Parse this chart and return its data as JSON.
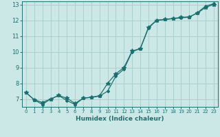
{
  "xlabel": "Humidex (Indice chaleur)",
  "bg_color": "#cce8e6",
  "grid_color": "#aacfcc",
  "line_color": "#1a7070",
  "xlim": [
    -0.5,
    23.5
  ],
  "ylim": [
    6.5,
    13.2
  ],
  "yticks": [
    7,
    8,
    9,
    10,
    11,
    12,
    13
  ],
  "xticks": [
    0,
    1,
    2,
    3,
    4,
    5,
    6,
    7,
    8,
    9,
    10,
    11,
    12,
    13,
    14,
    15,
    16,
    17,
    18,
    19,
    20,
    21,
    22,
    23
  ],
  "line1_x": [
    0,
    1,
    2,
    3,
    4,
    5,
    6,
    7,
    8,
    9,
    10,
    11,
    12,
    13,
    14,
    15,
    16,
    17,
    18,
    19,
    20,
    21,
    22,
    23
  ],
  "line1_y": [
    7.4,
    6.95,
    6.78,
    7.0,
    7.22,
    7.05,
    6.72,
    7.05,
    7.12,
    7.2,
    8.0,
    8.6,
    9.0,
    10.05,
    10.2,
    11.55,
    12.0,
    12.05,
    12.12,
    12.18,
    12.22,
    12.45,
    12.82,
    13.0
  ],
  "line2_x": [
    0,
    1,
    2,
    3,
    4,
    5,
    6,
    7,
    8,
    9,
    10,
    11,
    12,
    13,
    14,
    15,
    16,
    17,
    18,
    19,
    20,
    21,
    22,
    23
  ],
  "line2_y": [
    7.4,
    6.95,
    6.65,
    7.0,
    7.22,
    6.9,
    6.65,
    7.05,
    7.1,
    7.18,
    7.5,
    8.45,
    8.9,
    10.0,
    10.2,
    11.5,
    12.0,
    12.05,
    12.1,
    12.15,
    12.2,
    12.48,
    12.9,
    13.05
  ]
}
